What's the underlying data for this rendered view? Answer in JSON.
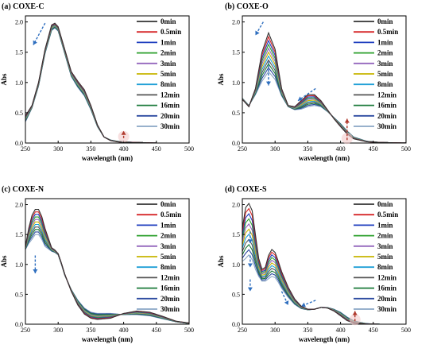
{
  "legend_labels": [
    "0min",
    "0.5min",
    "1min",
    "2min",
    "3min",
    "5min",
    "8min",
    "12min",
    "16min",
    "20min",
    "30min"
  ],
  "series_colors": [
    "#333333",
    "#d62728",
    "#1f3fbf",
    "#2ca02c",
    "#9467bd",
    "#c7b400",
    "#1f9fd6",
    "#555555",
    "#1b7a3a",
    "#2c4aa0",
    "#8aa6c4"
  ],
  "arrow_colors": {
    "decrease": "#2f6fbf",
    "increase": "#b03a2e"
  },
  "chart_data": [
    {
      "type": "line",
      "title": "(a) COXE-C",
      "xlabel": "wavelength (nm)",
      "ylabel": "Abs",
      "xlim": [
        250,
        500
      ],
      "ylim": [
        0,
        2.1
      ],
      "xticks": [
        250,
        300,
        350,
        400,
        450,
        500
      ],
      "yticks": [
        0.0,
        0.5,
        1.0,
        1.5,
        2.0
      ],
      "x": [
        250,
        260,
        270,
        280,
        290,
        295,
        300,
        310,
        320,
        330,
        340,
        350,
        360,
        370,
        380,
        390,
        400,
        420,
        450,
        500
      ],
      "series": [
        {
          "name": "0min",
          "values": [
            0.45,
            0.62,
            1.0,
            1.55,
            1.95,
            1.98,
            1.92,
            1.55,
            1.18,
            1.02,
            0.88,
            0.62,
            0.3,
            0.1,
            0.04,
            0.02,
            0.01,
            0.01,
            0.0,
            0.0
          ]
        },
        {
          "name": "30min",
          "values": [
            0.35,
            0.58,
            0.94,
            1.48,
            1.86,
            1.9,
            1.85,
            1.48,
            1.1,
            0.92,
            0.78,
            0.55,
            0.27,
            0.1,
            0.05,
            0.03,
            0.02,
            0.01,
            0.0,
            0.0
          ]
        }
      ],
      "arrows": [
        {
          "direction": "decrease",
          "from": [
            280,
            1.98
          ],
          "to": [
            262,
            1.62
          ]
        },
        {
          "direction": "increase",
          "from": [
            400,
            0.08
          ],
          "to": [
            400,
            0.2
          ]
        }
      ],
      "legend": "top-right"
    },
    {
      "type": "line",
      "title": "(b) COXE-O",
      "xlabel": "wavelength (nm)",
      "ylabel": "Abs",
      "xlim": [
        250,
        500
      ],
      "ylim": [
        0,
        2.1
      ],
      "xticks": [
        250,
        300,
        350,
        400,
        450,
        500
      ],
      "yticks": [
        0.0,
        0.5,
        1.0,
        1.5,
        2.0
      ],
      "x": [
        250,
        260,
        270,
        280,
        290,
        300,
        310,
        320,
        330,
        340,
        350,
        360,
        370,
        380,
        390,
        400,
        410,
        420,
        440,
        460,
        500
      ],
      "series": [
        {
          "name": "0min",
          "values": [
            0.72,
            0.6,
            0.9,
            1.5,
            1.82,
            1.55,
            0.9,
            0.62,
            0.6,
            0.7,
            0.8,
            0.8,
            0.7,
            0.55,
            0.4,
            0.27,
            0.15,
            0.07,
            0.02,
            0.01,
            0.0
          ]
        },
        {
          "name": "30min",
          "values": [
            0.74,
            0.62,
            0.8,
            1.02,
            1.18,
            1.05,
            0.78,
            0.6,
            0.55,
            0.56,
            0.6,
            0.62,
            0.6,
            0.52,
            0.42,
            0.32,
            0.2,
            0.1,
            0.03,
            0.01,
            0.0
          ]
        }
      ],
      "arrows": [
        {
          "direction": "decrease",
          "from": [
            282,
            2.0
          ],
          "to": [
            270,
            1.78
          ]
        },
        {
          "direction": "decrease",
          "from": [
            290,
            1.35
          ],
          "to": [
            290,
            0.95
          ]
        },
        {
          "direction": "decrease",
          "from": [
            362,
            0.9
          ],
          "to": [
            335,
            0.7
          ]
        },
        {
          "direction": "increase",
          "from": [
            410,
            0.05
          ],
          "to": [
            410,
            0.4
          ]
        }
      ],
      "legend": "top-right"
    },
    {
      "type": "line",
      "title": "(c) COXE-N",
      "xlabel": "wavelength (nm)",
      "ylabel": "Abs",
      "xlim": [
        250,
        500
      ],
      "ylim": [
        0,
        2.1
      ],
      "xticks": [
        250,
        300,
        350,
        400,
        450,
        500
      ],
      "yticks": [
        0.0,
        0.5,
        1.0,
        1.5,
        2.0
      ],
      "x": [
        250,
        255,
        260,
        265,
        270,
        275,
        280,
        290,
        295,
        300,
        305,
        310,
        320,
        330,
        340,
        350,
        360,
        380,
        400,
        420,
        440,
        460,
        480,
        500
      ],
      "series": [
        {
          "name": "0min",
          "values": [
            1.3,
            1.6,
            1.82,
            1.92,
            1.92,
            1.8,
            1.6,
            1.28,
            1.24,
            1.18,
            1.02,
            0.84,
            0.55,
            0.32,
            0.17,
            0.1,
            0.08,
            0.1,
            0.18,
            0.22,
            0.2,
            0.13,
            0.05,
            0.02
          ]
        },
        {
          "name": "30min",
          "values": [
            1.25,
            1.35,
            1.42,
            1.5,
            1.5,
            1.42,
            1.3,
            1.22,
            1.2,
            1.16,
            1.0,
            0.82,
            0.58,
            0.4,
            0.27,
            0.2,
            0.18,
            0.18,
            0.16,
            0.16,
            0.14,
            0.09,
            0.04,
            0.01
          ]
        }
      ],
      "arrows": [
        {
          "direction": "decrease",
          "from": [
            265,
            1.15
          ],
          "to": [
            265,
            0.85
          ]
        }
      ],
      "legend": "top-right"
    },
    {
      "type": "line",
      "title": "(d) COXE-S",
      "xlabel": "wavelength (nm)",
      "ylabel": "Abs",
      "xlim": [
        250,
        500
      ],
      "ylim": [
        0,
        2.1
      ],
      "xticks": [
        250,
        300,
        350,
        400,
        450,
        500
      ],
      "yticks": [
        0.0,
        0.5,
        1.0,
        1.5,
        2.0
      ],
      "x": [
        250,
        255,
        260,
        265,
        270,
        275,
        280,
        285,
        290,
        295,
        300,
        305,
        310,
        320,
        330,
        340,
        350,
        360,
        370,
        380,
        390,
        400,
        410,
        420,
        430,
        440,
        460,
        500
      ],
      "series": [
        {
          "name": "0min",
          "values": [
            1.6,
            1.95,
            2.02,
            1.9,
            1.5,
            1.1,
            0.92,
            0.95,
            1.15,
            1.25,
            1.2,
            1.05,
            0.88,
            0.62,
            0.42,
            0.3,
            0.25,
            0.25,
            0.28,
            0.27,
            0.22,
            0.14,
            0.06,
            0.02,
            0.01,
            0.0,
            0.0,
            0.0
          ]
        },
        {
          "name": "30min",
          "values": [
            1.05,
            1.1,
            1.16,
            1.08,
            0.92,
            0.8,
            0.72,
            0.72,
            0.76,
            0.8,
            0.78,
            0.7,
            0.6,
            0.45,
            0.33,
            0.26,
            0.24,
            0.25,
            0.28,
            0.28,
            0.25,
            0.2,
            0.12,
            0.06,
            0.03,
            0.01,
            0.0,
            0.0
          ]
        }
      ],
      "arrows": [
        {
          "direction": "decrease",
          "from": [
            262,
            1.55
          ],
          "to": [
            262,
            1.35
          ]
        },
        {
          "direction": "decrease",
          "from": [
            262,
            1.15
          ],
          "to": [
            262,
            0.95
          ]
        },
        {
          "direction": "decrease",
          "from": [
            262,
            0.75
          ],
          "to": [
            262,
            0.55
          ]
        },
        {
          "direction": "decrease",
          "from": [
            310,
            0.55
          ],
          "to": [
            320,
            0.32
          ]
        },
        {
          "direction": "decrease",
          "from": [
            362,
            0.4
          ],
          "to": [
            340,
            0.3
          ]
        },
        {
          "direction": "increase",
          "from": [
            422,
            0.05
          ],
          "to": [
            422,
            0.22
          ]
        }
      ],
      "legend": "top-right"
    }
  ]
}
